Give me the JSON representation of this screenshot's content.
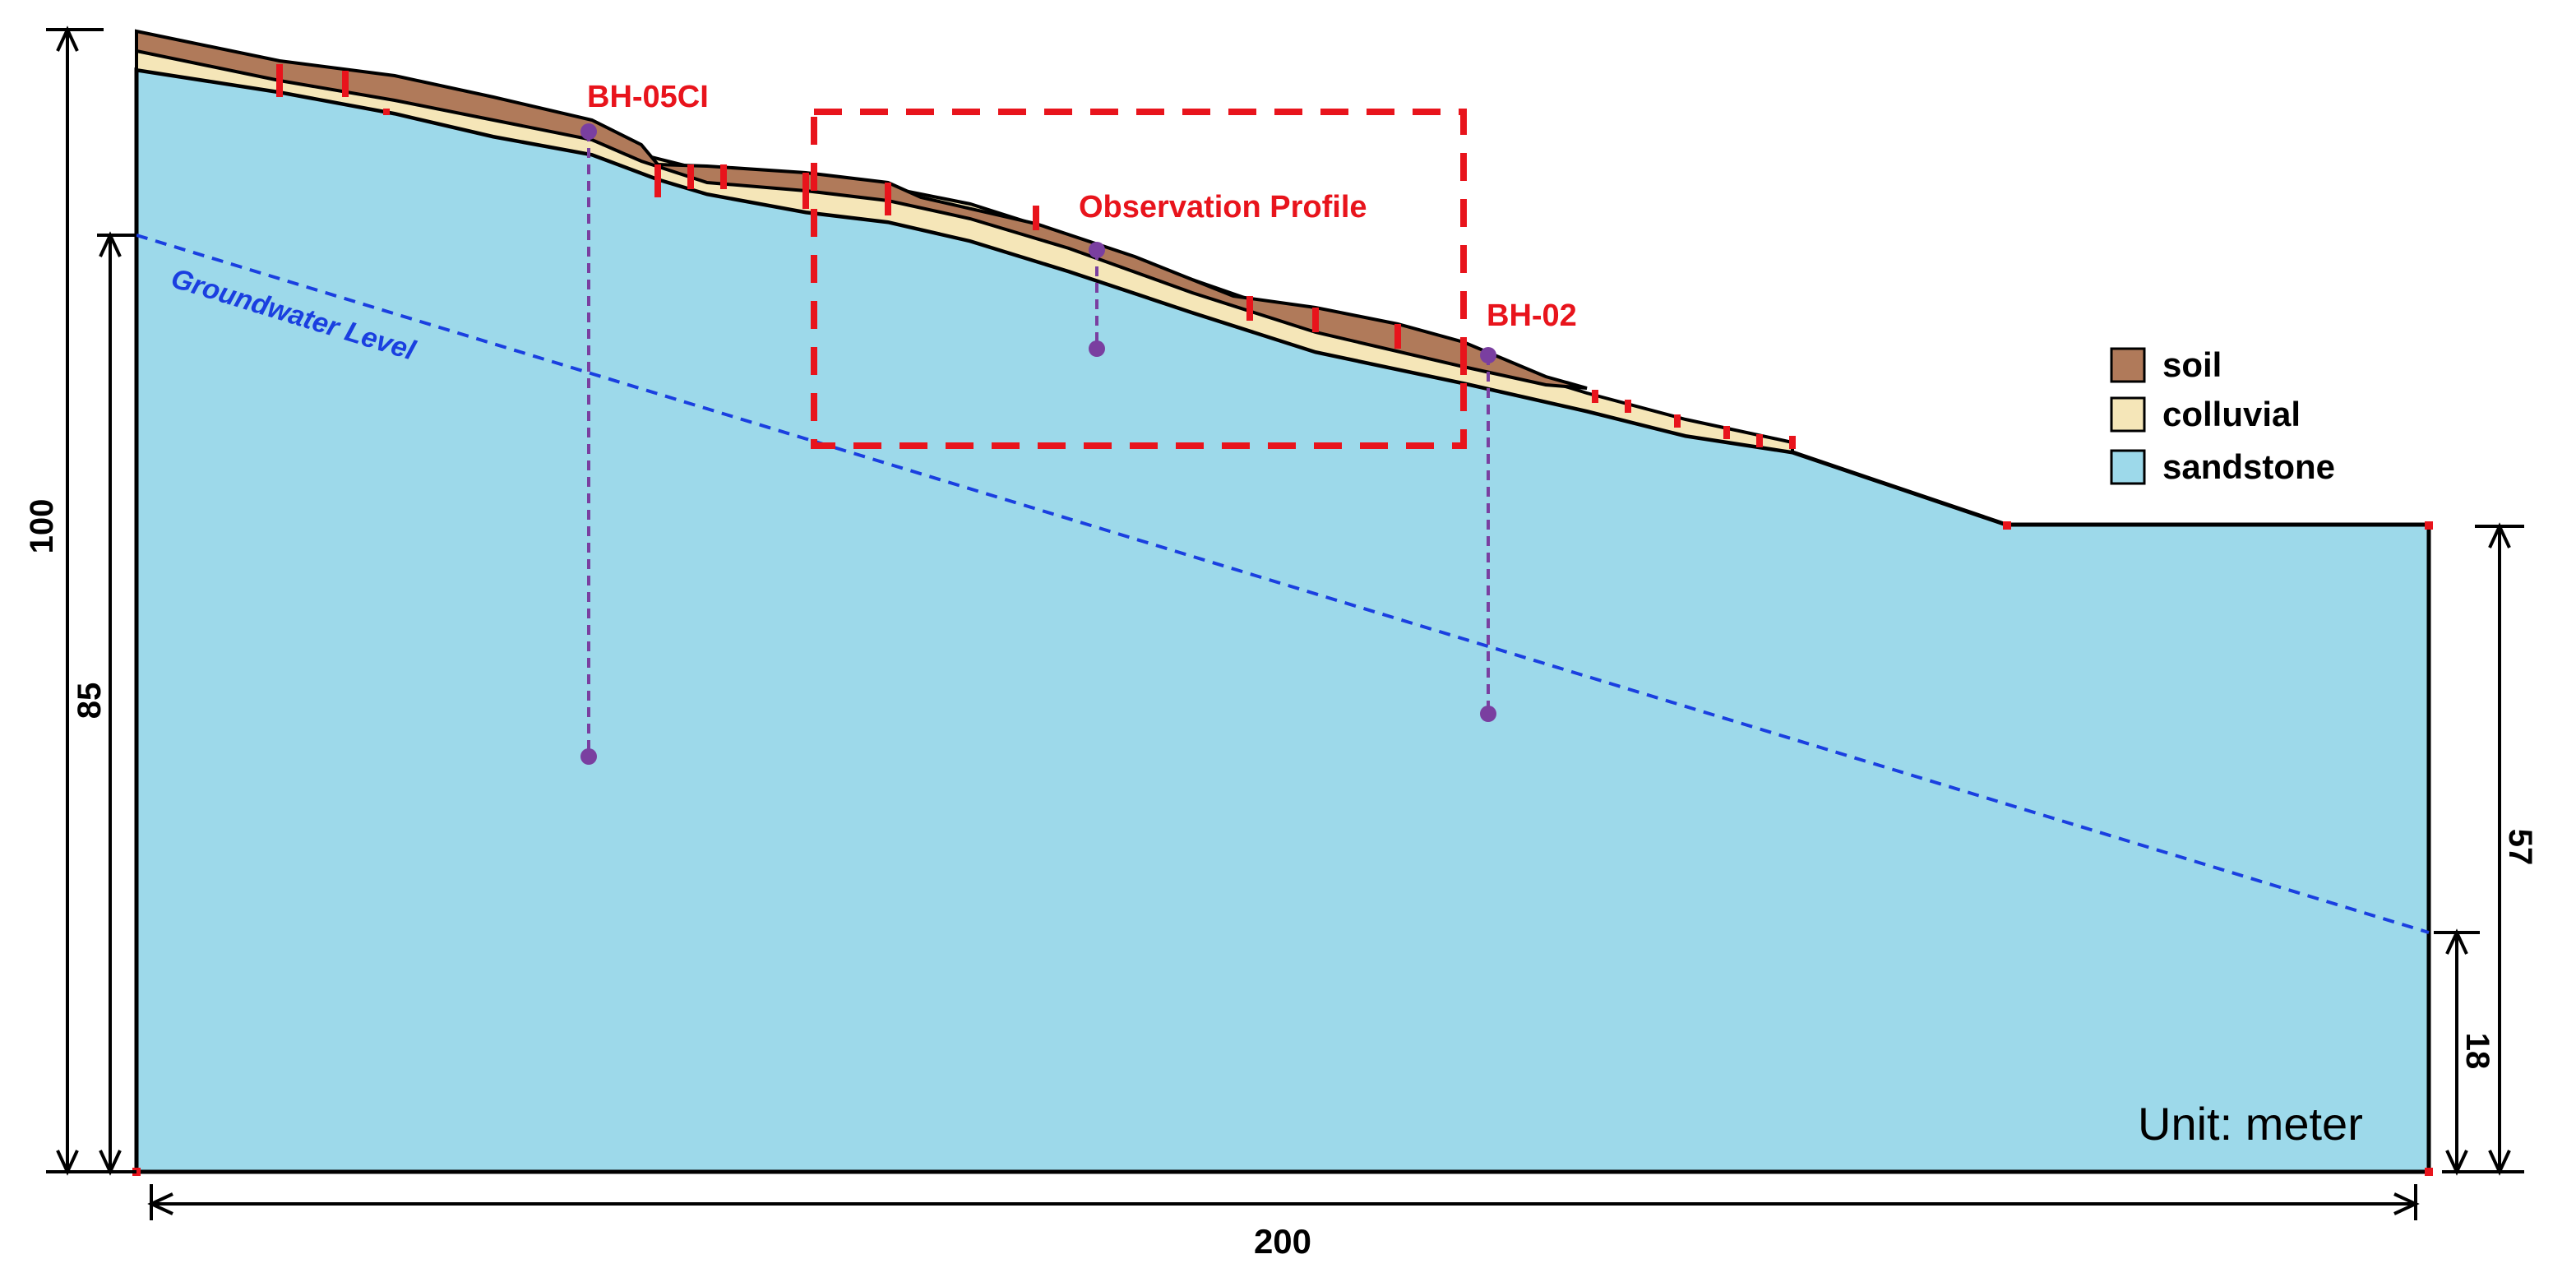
{
  "labels": {
    "bh05": "BH-05CI",
    "bh02": "BH-02",
    "observation": "Observation Profile",
    "groundwater": "Groundwater Level",
    "unit": "Unit: meter"
  },
  "dimensions": {
    "height_total": "100",
    "height_groundwater_left": "85",
    "height_right_surface": "57",
    "height_groundwater_right": "18",
    "width_total": "200"
  },
  "legend": [
    {
      "label": "soil",
      "color": "#b07a5a"
    },
    {
      "label": "colluvial",
      "color": "#f5e6b8"
    },
    {
      "label": "sandstone",
      "color": "#9dd9ea"
    }
  ],
  "colors": {
    "soil": "#b07a5a",
    "colluvial": "#f5e6b8",
    "sandstone": "#9dd9ea",
    "annotation_red": "#e8141c",
    "groundwater_blue": "#1a3fe0",
    "borehole_purple": "#7a3fa0",
    "outline": "#000000"
  }
}
